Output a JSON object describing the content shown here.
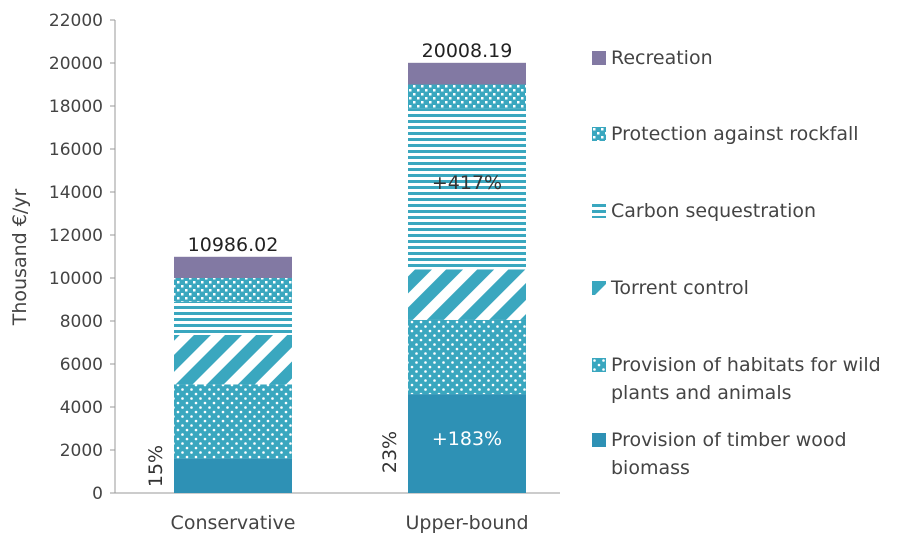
{
  "chart_data": {
    "type": "stacked_bar",
    "ylabel": "Thousand €/yr",
    "categories": [
      "Conservative",
      "Upper-bound"
    ],
    "series": [
      {
        "name": "Provision of timber wood biomass",
        "color": "#2e91b5",
        "pattern": "solid",
        "values": [
          1600,
          4600
        ]
      },
      {
        "name": "Provision of habitats for wild plants and animals",
        "color": "#3aa7bf",
        "pattern": "dots",
        "values": [
          3450,
          3450
        ]
      },
      {
        "name": "Torrent control",
        "color": "#3aa7bf",
        "pattern": "diagonal",
        "values": [
          2300,
          2350
        ]
      },
      {
        "name": "Carbon sequestration",
        "color": "#3aa7bf",
        "pattern": "hstripes",
        "values": [
          1550,
          7500
        ]
      },
      {
        "name": "Protection against rockfall",
        "color": "#3aa7bf",
        "pattern": "crosshatch",
        "values": [
          1100,
          1100
        ]
      },
      {
        "name": "Recreation",
        "color": "#8279a3",
        "pattern": "solid",
        "values": [
          986.02,
          1008.19
        ]
      }
    ],
    "totals": [
      10986.02,
      20008.19
    ],
    "annotations": [
      "15%",
      "23%",
      "+417%",
      "+183%"
    ],
    "ylim": [
      0,
      22000
    ],
    "yticks": [
      0,
      2000,
      4000,
      6000,
      8000,
      10000,
      12000,
      14000,
      16000,
      18000,
      20000,
      22000
    ],
    "legend": "right"
  }
}
